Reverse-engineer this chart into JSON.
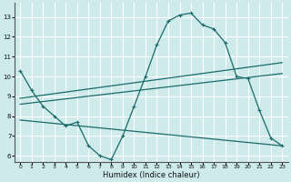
{
  "title": "",
  "xlabel": "Humidex (Indice chaleur)",
  "bg_color": "#ceeaea",
  "grid_color": "#ffffff",
  "line_color": "#1a6b6b",
  "xlim": [
    -0.5,
    23.5
  ],
  "ylim": [
    5.7,
    13.7
  ],
  "xticks": [
    0,
    1,
    2,
    3,
    4,
    5,
    6,
    7,
    8,
    9,
    10,
    11,
    12,
    13,
    14,
    15,
    16,
    17,
    18,
    19,
    20,
    21,
    22,
    23
  ],
  "yticks": [
    6,
    7,
    8,
    9,
    10,
    11,
    12,
    13
  ],
  "curve1_x": [
    0,
    1,
    2,
    3,
    4,
    5,
    6,
    7,
    8,
    9,
    10,
    11,
    12,
    13,
    14,
    15,
    16,
    17,
    18,
    19,
    20,
    21,
    22,
    23
  ],
  "curve1_y": [
    10.3,
    9.3,
    8.5,
    8.0,
    7.5,
    7.7,
    6.5,
    6.0,
    5.8,
    7.0,
    8.5,
    10.0,
    11.6,
    12.8,
    13.1,
    13.2,
    12.6,
    12.4,
    11.7,
    10.0,
    9.9,
    8.3,
    6.9,
    6.5
  ],
  "curve2_x": [
    0,
    23
  ],
  "curve2_y": [
    8.9,
    10.7
  ],
  "curve3_x": [
    0,
    23
  ],
  "curve3_y": [
    8.6,
    10.15
  ],
  "curve4_x": [
    0,
    23
  ],
  "curve4_y": [
    7.8,
    6.5
  ]
}
